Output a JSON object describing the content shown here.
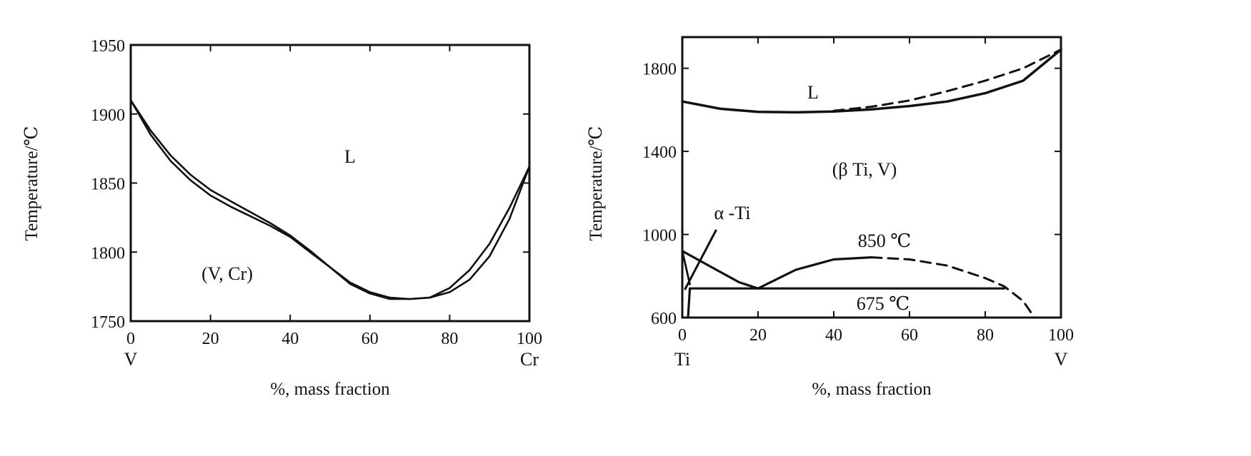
{
  "chart_data": [
    {
      "type": "line",
      "title": "",
      "xlabel": "%, mass fraction",
      "ylabel": "Temperature/℃",
      "xlim": [
        0,
        100
      ],
      "ylim": [
        1750,
        1950
      ],
      "x_ticks": [
        "0",
        "20",
        "40",
        "60",
        "80",
        "100"
      ],
      "y_ticks": [
        "1750",
        "1800",
        "1850",
        "1900",
        "1950"
      ],
      "endmembers": {
        "left": "V",
        "right": "Cr"
      },
      "annotations": [
        "L",
        "(V, Cr)"
      ],
      "series": [
        {
          "style": "solid",
          "x": [
            0,
            5,
            10,
            15,
            20,
            25,
            30,
            35,
            40,
            45,
            50,
            55,
            60,
            65,
            70,
            75,
            80,
            85,
            90,
            95,
            100
          ],
          "y": [
            1910,
            1888,
            1870,
            1856,
            1845,
            1837,
            1829,
            1821,
            1812,
            1801,
            1789,
            1778,
            1771,
            1767,
            1766,
            1767,
            1771,
            1780,
            1797,
            1824,
            1862
          ]
        },
        {
          "style": "solid",
          "x": [
            0,
            5,
            10,
            15,
            20,
            25,
            30,
            35,
            40,
            45,
            50,
            55,
            60,
            65,
            70,
            75,
            80,
            85,
            90,
            95,
            100
          ],
          "y": [
            1910,
            1885,
            1866,
            1852,
            1841,
            1833,
            1826,
            1819,
            1811,
            1800,
            1789,
            1777,
            1770,
            1766,
            1766,
            1767,
            1774,
            1787,
            1806,
            1832,
            1862
          ]
        }
      ]
    },
    {
      "type": "line",
      "title": "",
      "xlabel": "%, mass fraction",
      "ylabel": "Temperature/℃",
      "xlim": [
        0,
        100
      ],
      "ylim": [
        600,
        1950
      ],
      "x_ticks": [
        "0",
        "20",
        "40",
        "60",
        "80",
        "100"
      ],
      "y_ticks": [
        "600",
        "1000",
        "1400",
        "1800"
      ],
      "endmembers": {
        "left": "Ti",
        "right": "V"
      },
      "annotations": [
        "L",
        "(β Ti, V)",
        "α -Ti",
        "850 ℃",
        "675 ℃"
      ],
      "series": [
        {
          "style": "solid",
          "x": [
            0,
            10,
            20,
            30,
            40,
            50,
            60,
            70,
            80,
            90,
            100
          ],
          "y": [
            1640,
            1605,
            1590,
            1588,
            1592,
            1602,
            1618,
            1640,
            1680,
            1740,
            1890
          ]
        },
        {
          "style": "dashed",
          "x": [
            40,
            50,
            60,
            70,
            80,
            90,
            100
          ],
          "y": [
            1595,
            1615,
            1645,
            1690,
            1740,
            1800,
            1890
          ]
        },
        {
          "style": "solid",
          "x": [
            2,
            85
          ],
          "y": [
            740,
            740
          ]
        },
        {
          "style": "solid",
          "x": [
            20,
            30,
            40,
            50
          ],
          "y": [
            740,
            830,
            880,
            890
          ]
        },
        {
          "style": "dashed",
          "x": [
            50,
            60,
            70,
            80,
            85,
            90,
            93
          ],
          "y": [
            890,
            880,
            850,
            790,
            750,
            680,
            600
          ]
        },
        {
          "style": "solid",
          "x": [
            0,
            5,
            10,
            15,
            20
          ],
          "y": [
            920,
            870,
            820,
            770,
            740
          ]
        },
        {
          "style": "solid",
          "x": [
            0,
            2
          ],
          "y": [
            920,
            760
          ]
        },
        {
          "style": "solid",
          "x": [
            2,
            1.5
          ],
          "y": [
            740,
            600
          ]
        }
      ]
    }
  ]
}
